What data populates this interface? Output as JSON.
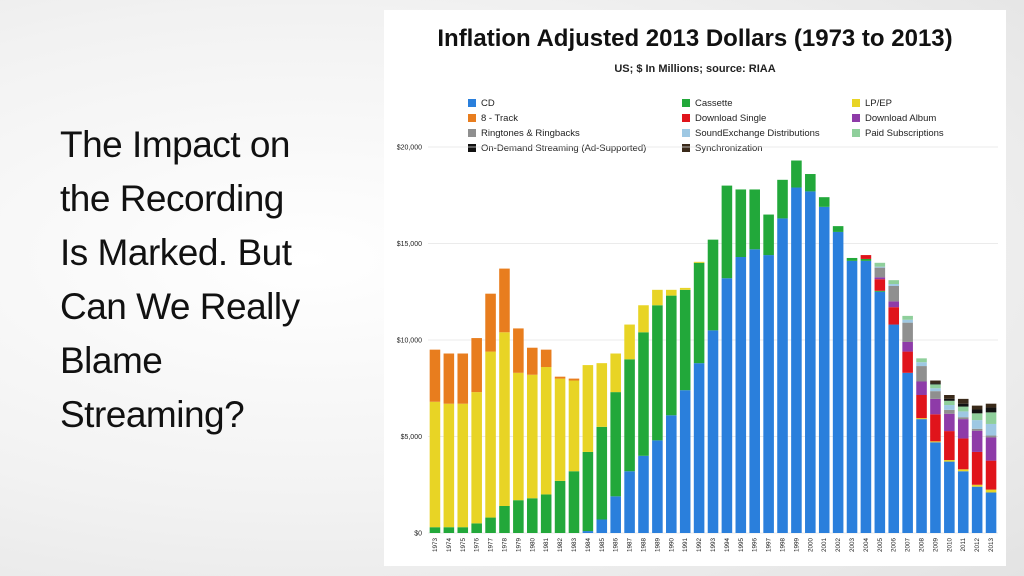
{
  "slide": {
    "title_lines": [
      "The Impact on",
      "the Recording",
      "Is Marked.  But",
      "Can We Really",
      "Blame",
      "Streaming?"
    ]
  },
  "chart_data": {
    "type": "bar",
    "stacked": true,
    "title": "Inflation Adjusted 2013 Dollars (1973 to 2013)",
    "subtitle": "US; $ In Millions; source: RIAA",
    "ylim": [
      0,
      20000
    ],
    "y_ticks": [
      0,
      5000,
      10000,
      15000,
      20000
    ],
    "y_tick_labels": [
      "$0",
      "$5,000",
      "$10,000",
      "$15,000",
      "$20,000"
    ],
    "grid": true,
    "legend_position": "top",
    "categories": [
      "1973",
      "1974",
      "1975",
      "1976",
      "1977",
      "1978",
      "1979",
      "1980",
      "1981",
      "1982",
      "1983",
      "1984",
      "1985",
      "1986",
      "1987",
      "1988",
      "1989",
      "1990",
      "1991",
      "1992",
      "1993",
      "1994",
      "1995",
      "1996",
      "1997",
      "1998",
      "1999",
      "2000",
      "2001",
      "2002",
      "2003",
      "2004",
      "2005",
      "2006",
      "2007",
      "2008",
      "2009",
      "2010",
      "2011",
      "2012",
      "2013"
    ],
    "series": [
      {
        "name": "CD",
        "color": "#2a7fdc",
        "values": [
          0,
          0,
          0,
          0,
          0,
          0,
          0,
          0,
          0,
          0,
          0,
          100,
          700,
          1900,
          3200,
          4000,
          4800,
          6100,
          7400,
          8800,
          10500,
          13200,
          14300,
          14700,
          14400,
          16300,
          17900,
          17700,
          16900,
          15600,
          14100,
          14100,
          12500,
          10800,
          8300,
          5900,
          4700,
          3700,
          3200,
          2400,
          2100
        ]
      },
      {
        "name": "Cassette",
        "color": "#22a83a",
        "values": [
          300,
          300,
          300,
          500,
          800,
          1400,
          1700,
          1800,
          2000,
          2700,
          3200,
          4100,
          4800,
          5400,
          5800,
          6400,
          7000,
          6200,
          5200,
          5200,
          4700,
          4800,
          3500,
          3100,
          2100,
          2000,
          1400,
          900,
          500,
          300,
          150,
          100,
          50,
          0,
          0,
          0,
          0,
          0,
          0,
          0,
          0
        ]
      },
      {
        "name": "LP/EP",
        "color": "#e8d425",
        "values": [
          6500,
          6400,
          6400,
          6800,
          8600,
          9000,
          6600,
          6400,
          6600,
          5300,
          4700,
          4500,
          3300,
          2000,
          1800,
          1400,
          800,
          300,
          100,
          50,
          0,
          0,
          0,
          0,
          0,
          0,
          0,
          0,
          0,
          0,
          0,
          0,
          0,
          0,
          0,
          50,
          50,
          80,
          100,
          100,
          150
        ]
      },
      {
        "name": "8 - Track",
        "color": "#e87d1e",
        "values": [
          2700,
          2600,
          2600,
          2800,
          3000,
          3300,
          2300,
          1400,
          900,
          100,
          100,
          0,
          0,
          0,
          0,
          0,
          0,
          0,
          0,
          0,
          0,
          0,
          0,
          0,
          0,
          0,
          0,
          0,
          0,
          0,
          0,
          0,
          0,
          0,
          0,
          0,
          0,
          0,
          0,
          0,
          0
        ]
      },
      {
        "name": "Download Single",
        "color": "#e0141b",
        "values": [
          0,
          0,
          0,
          0,
          0,
          0,
          0,
          0,
          0,
          0,
          0,
          0,
          0,
          0,
          0,
          0,
          0,
          0,
          0,
          0,
          0,
          0,
          0,
          0,
          0,
          0,
          0,
          0,
          0,
          0,
          0,
          200,
          600,
          900,
          1100,
          1200,
          1400,
          1500,
          1600,
          1700,
          1500
        ]
      },
      {
        "name": "Download Album",
        "color": "#8e3ba8",
        "values": [
          0,
          0,
          0,
          0,
          0,
          0,
          0,
          0,
          0,
          0,
          0,
          0,
          0,
          0,
          0,
          0,
          0,
          0,
          0,
          0,
          0,
          0,
          0,
          0,
          0,
          0,
          0,
          0,
          0,
          0,
          0,
          0,
          100,
          300,
          500,
          700,
          800,
          900,
          1000,
          1100,
          1200
        ]
      },
      {
        "name": "Ringtones & Ringbacks",
        "color": "#8f8f8f",
        "values": [
          0,
          0,
          0,
          0,
          0,
          0,
          0,
          0,
          0,
          0,
          0,
          0,
          0,
          0,
          0,
          0,
          0,
          0,
          0,
          0,
          0,
          0,
          0,
          0,
          0,
          0,
          0,
          0,
          0,
          0,
          0,
          0,
          500,
          800,
          1000,
          800,
          400,
          200,
          100,
          100,
          100
        ]
      },
      {
        "name": "SoundExchange Distributions",
        "color": "#9ec8e3",
        "values": [
          0,
          0,
          0,
          0,
          0,
          0,
          0,
          0,
          0,
          0,
          0,
          0,
          0,
          0,
          0,
          0,
          0,
          0,
          0,
          0,
          0,
          0,
          0,
          0,
          0,
          0,
          0,
          0,
          0,
          0,
          0,
          0,
          50,
          100,
          150,
          200,
          150,
          250,
          300,
          450,
          600
        ]
      },
      {
        "name": "Paid Subscriptions",
        "color": "#8fcf9b",
        "values": [
          0,
          0,
          0,
          0,
          0,
          0,
          0,
          0,
          0,
          0,
          0,
          0,
          0,
          0,
          0,
          0,
          0,
          0,
          0,
          0,
          0,
          0,
          0,
          0,
          0,
          0,
          0,
          0,
          0,
          0,
          0,
          0,
          200,
          200,
          200,
          200,
          200,
          220,
          250,
          350,
          600
        ]
      },
      {
        "name": "On-Demand Streaming (Ad-Supported)",
        "color": "#111111",
        "values": [
          0,
          0,
          0,
          0,
          0,
          0,
          0,
          0,
          0,
          0,
          0,
          0,
          0,
          0,
          0,
          0,
          0,
          0,
          0,
          0,
          0,
          0,
          0,
          0,
          0,
          0,
          0,
          0,
          0,
          0,
          0,
          0,
          0,
          0,
          0,
          0,
          50,
          100,
          150,
          200,
          250
        ]
      },
      {
        "name": "Synchronization",
        "color": "#3a2a1a",
        "values": [
          0,
          0,
          0,
          0,
          0,
          0,
          0,
          0,
          0,
          0,
          0,
          0,
          0,
          0,
          0,
          0,
          0,
          0,
          0,
          0,
          0,
          0,
          0,
          0,
          0,
          0,
          0,
          0,
          0,
          0,
          0,
          0,
          0,
          0,
          0,
          0,
          150,
          200,
          250,
          200,
          200
        ]
      }
    ],
    "legend_columns": [
      [
        "CD",
        "8 - Track",
        "Ringtones & Ringbacks",
        "On-Demand Streaming (Ad-Supported)"
      ],
      [
        "Cassette",
        "Download Single",
        "SoundExchange Distributions",
        "Synchronization"
      ],
      [
        "LP/EP",
        "Download Album",
        "Paid Subscriptions"
      ]
    ]
  }
}
